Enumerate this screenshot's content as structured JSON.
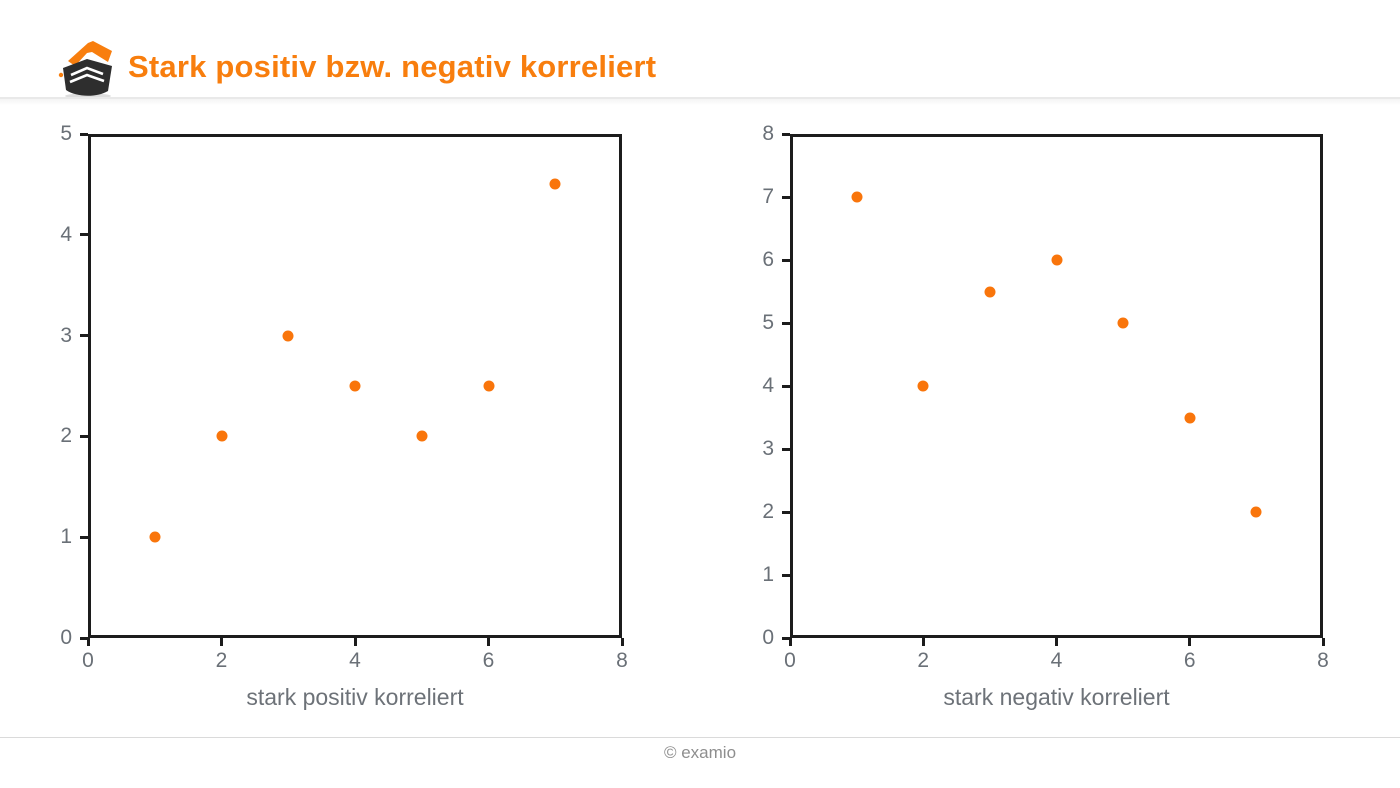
{
  "header": {
    "title": "Stark positiv bzw. negativ korreliert",
    "logo_icon": "examio-book-logo"
  },
  "footer": {
    "copyright": "© examio"
  },
  "colors": {
    "accent_orange": "#F87E0E",
    "point_orange": "#F9750B",
    "axis_black": "#1C1C1C",
    "tick_label_gray": "#6A7077",
    "axis_title_gray": "#6D7278",
    "footer_gray": "#8E8E8E",
    "divider_gray": "#E9E9E9"
  },
  "chart_data": [
    {
      "type": "scatter",
      "x": [
        1,
        2,
        3,
        4,
        5,
        6,
        7
      ],
      "y": [
        1,
        2,
        3,
        2.5,
        2,
        2.5,
        4.5
      ],
      "title": "",
      "xlabel": "stark positiv korreliert",
      "ylabel": "",
      "xlim": [
        0,
        8
      ],
      "ylim": [
        0,
        5
      ],
      "xticks": [
        0,
        2,
        4,
        6,
        8
      ],
      "yticks": [
        0,
        1,
        2,
        3,
        4,
        5
      ],
      "grid": false,
      "legend": false,
      "point_color": "#F9750B"
    },
    {
      "type": "scatter",
      "x": [
        1,
        2,
        3,
        4,
        5,
        6,
        7
      ],
      "y": [
        7,
        4,
        5.5,
        6,
        5,
        3.5,
        2
      ],
      "title": "",
      "xlabel": "stark negativ korreliert",
      "ylabel": "",
      "xlim": [
        0,
        8
      ],
      "ylim": [
        0,
        8
      ],
      "xticks": [
        0,
        2,
        4,
        6,
        8
      ],
      "yticks": [
        0,
        1,
        2,
        3,
        4,
        5,
        6,
        7,
        8
      ],
      "grid": false,
      "legend": false,
      "point_color": "#F9750B"
    }
  ]
}
